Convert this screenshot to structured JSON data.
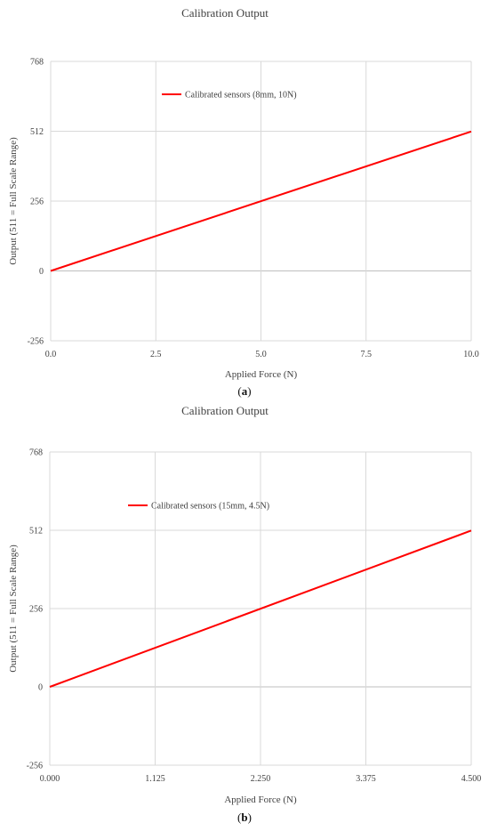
{
  "chart_data": [
    {
      "type": "line",
      "title": "Calibration Output",
      "xlabel": "Applied Force (N)",
      "ylabel": "Output (511 = Full Scale Range)",
      "xlim": [
        0,
        10
      ],
      "ylim": [
        -256,
        768
      ],
      "xticks": [
        "0.0",
        "2.5",
        "5.0",
        "7.5",
        "10.0"
      ],
      "xtick_values": [
        0,
        2.5,
        5,
        7.5,
        10
      ],
      "yticks": [
        "-256",
        "0",
        "256",
        "512",
        "768"
      ],
      "ytick_values": [
        -256,
        0,
        256,
        512,
        768
      ],
      "grid": true,
      "legend_position": "top",
      "series": [
        {
          "name": "Calibrated sensors (8mm, 10N)",
          "color": "#ff0000",
          "x": [
            0,
            10
          ],
          "y": [
            0,
            511
          ]
        }
      ],
      "caption_open": "(",
      "caption_letter": "a",
      "caption_close": ")"
    },
    {
      "type": "line",
      "title": "Calibration Output",
      "xlabel": "Applied Force (N)",
      "ylabel": "Output (511 = Full Scale Range)",
      "xlim": [
        0,
        4.5
      ],
      "ylim": [
        -256,
        768
      ],
      "xticks": [
        "0.000",
        "1.125",
        "2.250",
        "3.375",
        "4.500"
      ],
      "xtick_values": [
        0,
        1.125,
        2.25,
        3.375,
        4.5
      ],
      "yticks": [
        "-256",
        "0",
        "256",
        "512",
        "768"
      ],
      "ytick_values": [
        -256,
        0,
        256,
        512,
        768
      ],
      "grid": true,
      "legend_position": "top",
      "series": [
        {
          "name": "Calibrated sensors (15mm, 4.5N)",
          "color": "#ff0000",
          "x": [
            0,
            4.5
          ],
          "y": [
            0,
            511
          ]
        }
      ],
      "caption_open": "(",
      "caption_letter": "b",
      "caption_close": ")"
    }
  ]
}
